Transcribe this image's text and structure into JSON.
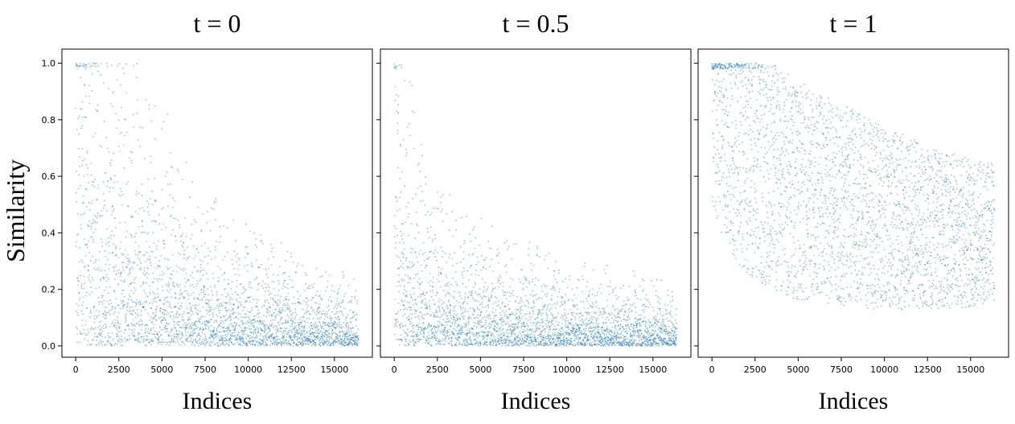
{
  "figure": {
    "ylabel": "Similarity",
    "point_color": "#1f77b4"
  },
  "chart_data": [
    {
      "type": "scatter",
      "title": "t = 0",
      "xlabel": "Indices",
      "ylabel": "Similarity",
      "xlim": [
        -800,
        17200
      ],
      "ylim": [
        -0.04,
        1.05
      ],
      "x_ticks": [
        0,
        2500,
        5000,
        7500,
        10000,
        12500,
        15000
      ],
      "x_tick_labels": [
        "0",
        "2500",
        "5000",
        "7500",
        "10000",
        "12500",
        "15000"
      ],
      "y_ticks": [
        0.0,
        0.2,
        0.4,
        0.6,
        0.8,
        1.0
      ],
      "y_tick_labels": [
        "0.0",
        "0.2",
        "0.4",
        "0.6",
        "0.8",
        "1.0"
      ],
      "grid": false,
      "series": [
        {
          "color": "#1f77b4",
          "n_points": 16384,
          "x_range": [
            0,
            16383
          ],
          "trend_x": [
            0,
            500,
            1500,
            3000,
            5000,
            7500,
            10000,
            12500,
            15000,
            16383
          ],
          "trend_median_y": [
            0.95,
            0.7,
            0.5,
            0.38,
            0.27,
            0.19,
            0.14,
            0.11,
            0.09,
            0.08
          ],
          "max_y": 1.0,
          "min_y": 0.0
        }
      ]
    },
    {
      "type": "scatter",
      "title": "t = 0.5",
      "xlabel": "Indices",
      "ylabel": "Similarity",
      "xlim": [
        -800,
        17200
      ],
      "ylim": [
        -0.04,
        1.05
      ],
      "x_ticks": [
        0,
        2500,
        5000,
        7500,
        10000,
        12500,
        15000
      ],
      "x_tick_labels": [
        "0",
        "2500",
        "5000",
        "7500",
        "10000",
        "12500",
        "15000"
      ],
      "y_ticks": [
        0.0,
        0.2,
        0.4,
        0.6,
        0.8,
        1.0
      ],
      "y_tick_labels": [
        "",
        "",
        "",
        "",
        "",
        ""
      ],
      "grid": false,
      "series": [
        {
          "color": "#1f77b4",
          "n_points": 16384,
          "x_range": [
            0,
            16383
          ],
          "trend_x": [
            0,
            200,
            800,
            2000,
            4000,
            7500,
            10000,
            12500,
            15000,
            16383
          ],
          "trend_median_y": [
            0.9,
            0.6,
            0.35,
            0.22,
            0.16,
            0.12,
            0.1,
            0.09,
            0.08,
            0.07
          ],
          "max_y": 1.0,
          "min_y": 0.0
        }
      ]
    },
    {
      "type": "scatter",
      "title": "t = 1",
      "xlabel": "Indices",
      "ylabel": "Similarity",
      "xlim": [
        -800,
        17200
      ],
      "ylim": [
        -0.04,
        1.05
      ],
      "x_ticks": [
        0,
        2500,
        5000,
        7500,
        10000,
        12500,
        15000
      ],
      "x_tick_labels": [
        "0",
        "2500",
        "5000",
        "7500",
        "10000",
        "12500",
        "15000"
      ],
      "y_ticks": [
        0.0,
        0.2,
        0.4,
        0.6,
        0.8,
        1.0
      ],
      "y_tick_labels": [
        "",
        "",
        "",
        "",
        "",
        ""
      ],
      "grid": false,
      "series": [
        {
          "color": "#1f77b4",
          "n_points": 16384,
          "x_range": [
            0,
            16383
          ],
          "trend_x": [
            0,
            500,
            1500,
            3000,
            5000,
            7500,
            10000,
            12500,
            15000,
            16383
          ],
          "trend_median_y": [
            0.95,
            0.85,
            0.72,
            0.62,
            0.55,
            0.5,
            0.45,
            0.42,
            0.4,
            0.4
          ],
          "max_y": 1.0,
          "min_y": 0.0
        }
      ]
    }
  ]
}
